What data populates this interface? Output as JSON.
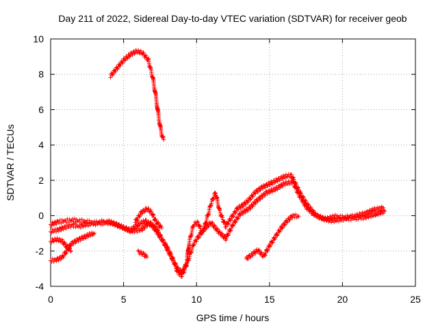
{
  "chart_data": {
    "type": "scatter",
    "title": "Day 211 of 2022, Sidereal Day-to-day VTEC variation (SDTVAR) for receiver geob",
    "xlabel": "GPS time / hours",
    "ylabel": "SDTVAR / TECUs",
    "xlim": [
      0,
      25
    ],
    "ylim": [
      -4,
      10
    ],
    "xticks": [
      0,
      5,
      10,
      15,
      20,
      25
    ],
    "yticks": [
      -4,
      -2,
      0,
      2,
      4,
      6,
      8,
      10
    ],
    "grid": true,
    "marker": "+",
    "series_color": "#ff0000",
    "series": [
      {
        "name": "satellite-arc-high",
        "values": [
          [
            4.1,
            7.9
          ],
          [
            4.5,
            8.3
          ],
          [
            5.0,
            8.8
          ],
          [
            5.5,
            9.15
          ],
          [
            5.9,
            9.3
          ],
          [
            6.3,
            9.2
          ],
          [
            6.7,
            8.8
          ],
          [
            7.0,
            7.8
          ],
          [
            7.2,
            6.8
          ],
          [
            7.4,
            5.6
          ],
          [
            7.6,
            4.6
          ],
          [
            7.75,
            4.3
          ]
        ]
      },
      {
        "name": "arc-main-baseline",
        "values": [
          [
            0.0,
            -0.5
          ],
          [
            0.5,
            -0.35
          ],
          [
            1.0,
            -0.3
          ],
          [
            1.5,
            -0.25
          ],
          [
            2.0,
            -0.3
          ],
          [
            2.5,
            -0.35
          ],
          [
            3.0,
            -0.4
          ],
          [
            3.5,
            -0.35
          ],
          [
            4.0,
            -0.35
          ],
          [
            4.5,
            -0.5
          ],
          [
            5.0,
            -0.7
          ],
          [
            5.5,
            -0.8
          ],
          [
            6.0,
            -0.5
          ],
          [
            6.5,
            -0.3
          ],
          [
            7.0,
            -0.6
          ],
          [
            7.5,
            -1.2
          ],
          [
            8.0,
            -1.8
          ],
          [
            8.4,
            -2.5
          ],
          [
            8.7,
            -3.2
          ],
          [
            9.0,
            -3.4
          ],
          [
            9.3,
            -2.8
          ],
          [
            9.5,
            -1.5
          ],
          [
            9.8,
            -0.5
          ],
          [
            10.1,
            -0.4
          ],
          [
            10.4,
            -1.0
          ],
          [
            10.7,
            -0.2
          ],
          [
            11.0,
            0.7
          ],
          [
            11.3,
            1.3
          ],
          [
            11.6,
            0.2
          ],
          [
            12.0,
            -0.6
          ],
          [
            12.4,
            -0.1
          ],
          [
            12.8,
            0.4
          ],
          [
            13.2,
            0.6
          ],
          [
            13.6,
            0.9
          ],
          [
            14.0,
            1.3
          ],
          [
            14.5,
            1.6
          ],
          [
            15.0,
            1.8
          ],
          [
            15.5,
            2.0
          ],
          [
            16.0,
            2.2
          ],
          [
            16.5,
            2.3
          ],
          [
            16.9,
            1.6
          ],
          [
            17.3,
            1.0
          ],
          [
            17.7,
            0.5
          ],
          [
            18.2,
            0.0
          ],
          [
            18.8,
            -0.2
          ],
          [
            19.5,
            -0.05
          ],
          [
            20.2,
            -0.1
          ],
          [
            21.0,
            0.0
          ],
          [
            21.6,
            0.15
          ],
          [
            22.2,
            0.35
          ],
          [
            22.8,
            0.45
          ]
        ]
      },
      {
        "name": "arc-lower-baseline",
        "values": [
          [
            0.0,
            -0.9
          ],
          [
            0.5,
            -0.8
          ],
          [
            1.0,
            -0.65
          ],
          [
            1.5,
            -0.55
          ],
          [
            2.0,
            -0.6
          ],
          [
            2.5,
            -0.5
          ],
          [
            3.0,
            -0.45
          ],
          [
            4.0,
            -0.4
          ],
          [
            4.8,
            -0.6
          ],
          [
            5.5,
            -0.9
          ],
          [
            6.2,
            -0.8
          ],
          [
            6.8,
            -0.4
          ],
          [
            7.3,
            -0.8
          ],
          [
            7.8,
            -1.6
          ],
          [
            8.3,
            -2.4
          ],
          [
            8.7,
            -3.0
          ],
          [
            9.0,
            -3.2
          ],
          [
            9.4,
            -2.6
          ],
          [
            9.8,
            -1.6
          ],
          [
            10.2,
            -1.1
          ],
          [
            10.6,
            -0.7
          ],
          [
            11.0,
            -0.4
          ],
          [
            11.5,
            -0.9
          ],
          [
            12.0,
            -1.3
          ],
          [
            12.5,
            -0.5
          ],
          [
            13.0,
            0.1
          ],
          [
            13.6,
            0.4
          ],
          [
            14.2,
            0.9
          ],
          [
            14.8,
            1.3
          ],
          [
            15.4,
            1.5
          ],
          [
            16.0,
            1.8
          ],
          [
            16.6,
            1.9
          ],
          [
            17.0,
            1.2
          ],
          [
            17.5,
            0.5
          ],
          [
            18.0,
            0.1
          ],
          [
            18.6,
            -0.15
          ],
          [
            19.3,
            -0.3
          ],
          [
            20.0,
            -0.2
          ],
          [
            20.8,
            -0.15
          ],
          [
            21.5,
            -0.1
          ],
          [
            22.2,
            0.05
          ],
          [
            22.9,
            0.25
          ]
        ]
      },
      {
        "name": "arc-night-start",
        "values": [
          [
            0.0,
            -2.55
          ],
          [
            0.4,
            -2.5
          ],
          [
            0.8,
            -2.35
          ],
          [
            1.1,
            -2.0
          ],
          [
            1.4,
            -1.6
          ],
          [
            1.8,
            -1.4
          ],
          [
            2.2,
            -1.25
          ],
          [
            2.6,
            -1.1
          ],
          [
            3.0,
            -1.0
          ]
        ]
      },
      {
        "name": "arc-early-low",
        "values": [
          [
            0.0,
            -1.45
          ],
          [
            0.4,
            -1.35
          ],
          [
            0.8,
            -1.45
          ],
          [
            1.1,
            -1.75
          ],
          [
            1.4,
            -2.0
          ]
        ]
      },
      {
        "name": "arc-short-6h",
        "values": [
          [
            6.0,
            -2.05
          ],
          [
            6.3,
            -2.15
          ],
          [
            6.6,
            -2.35
          ]
        ]
      },
      {
        "name": "arc-rising-afternoon",
        "values": [
          [
            13.4,
            -2.45
          ],
          [
            13.8,
            -2.2
          ],
          [
            14.2,
            -1.95
          ],
          [
            14.6,
            -2.3
          ],
          [
            15.0,
            -1.7
          ],
          [
            15.4,
            -1.2
          ],
          [
            15.8,
            -0.7
          ],
          [
            16.2,
            -0.3
          ],
          [
            16.6,
            0.0
          ],
          [
            17.0,
            -0.05
          ]
        ]
      },
      {
        "name": "arc-short-6h-mid",
        "values": [
          [
            5.8,
            -0.35
          ],
          [
            6.2,
            0.15
          ],
          [
            6.6,
            0.4
          ],
          [
            6.9,
            0.2
          ],
          [
            7.2,
            -0.3
          ],
          [
            7.6,
            -0.7
          ]
        ]
      }
    ]
  }
}
